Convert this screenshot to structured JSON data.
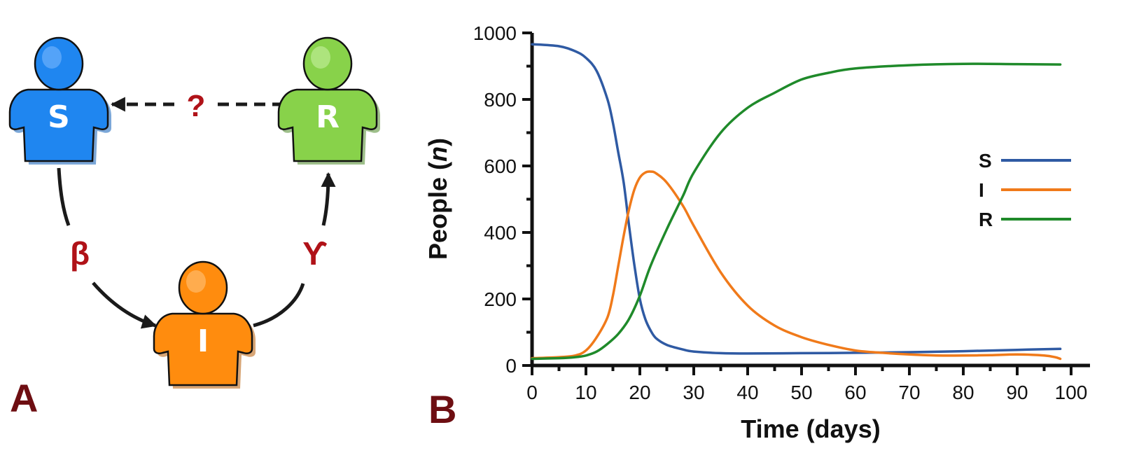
{
  "panel_a": {
    "panel_letter": "A",
    "nodes": [
      {
        "id": "S",
        "label": "S",
        "color": "#1f86f0"
      },
      {
        "id": "R",
        "label": "R",
        "color": "#88d24a"
      },
      {
        "id": "I",
        "label": "I",
        "color": "#ff8c0e"
      }
    ],
    "edges": [
      {
        "from": "R",
        "to": "S",
        "label": "?",
        "style": "dashed"
      },
      {
        "from": "S",
        "to": "I",
        "label": "β",
        "style": "solid"
      },
      {
        "from": "I",
        "to": "R",
        "label": "ϒ",
        "style": "solid"
      }
    ],
    "label_color": "#b01218",
    "panel_letter_color": "#6e0e12"
  },
  "panel_b": {
    "panel_letter": "B",
    "chart_data": {
      "type": "line",
      "title": "",
      "xlabel": "Time (days)",
      "ylabel_prefix": "People (",
      "ylabel_italic": "n",
      "ylabel_suffix": ")",
      "xlim": [
        0,
        100
      ],
      "ylim": [
        0,
        1000
      ],
      "xticks": [
        "0",
        "10",
        "20",
        "30",
        "40",
        "50",
        "60",
        "70",
        "80",
        "90",
        "100"
      ],
      "yticks": [
        "0",
        "200",
        "400",
        "600",
        "800",
        "1000"
      ],
      "grid": false,
      "legend_position": "right",
      "series": [
        {
          "name": "S",
          "color": "#2f5aa3",
          "x": [
            0,
            5,
            8,
            10,
            12,
            14,
            15,
            16,
            17,
            18,
            19,
            20,
            21,
            22,
            23,
            25,
            28,
            30,
            35,
            40,
            50,
            60,
            70,
            80,
            90,
            98
          ],
          "y": [
            966,
            960,
            945,
            925,
            885,
            800,
            730,
            640,
            550,
            420,
            300,
            200,
            140,
            105,
            82,
            62,
            48,
            42,
            37,
            36,
            37,
            38,
            40,
            43,
            47,
            50
          ]
        },
        {
          "name": "I",
          "color": "#f07a1a",
          "x": [
            0,
            5,
            8,
            10,
            12,
            14,
            15,
            16,
            17,
            18,
            19,
            20,
            21,
            22,
            23,
            25,
            28,
            30,
            35,
            40,
            45,
            50,
            55,
            60,
            65,
            70,
            75,
            80,
            85,
            90,
            95,
            97,
            98
          ],
          "y": [
            22,
            25,
            30,
            45,
            85,
            145,
            210,
            300,
            390,
            470,
            530,
            565,
            580,
            583,
            578,
            550,
            480,
            420,
            280,
            180,
            120,
            85,
            62,
            45,
            38,
            33,
            30,
            30,
            31,
            33,
            30,
            25,
            20
          ]
        },
        {
          "name": "R",
          "color": "#1f8a2a",
          "x": [
            0,
            5,
            8,
            10,
            12,
            14,
            16,
            18,
            20,
            22,
            25,
            28,
            30,
            35,
            40,
            45,
            50,
            55,
            60,
            70,
            80,
            90,
            98
          ],
          "y": [
            20,
            22,
            25,
            30,
            42,
            65,
            95,
            140,
            210,
            300,
            410,
            510,
            580,
            700,
            775,
            820,
            860,
            880,
            893,
            903,
            907,
            906,
            905
          ]
        }
      ]
    }
  }
}
